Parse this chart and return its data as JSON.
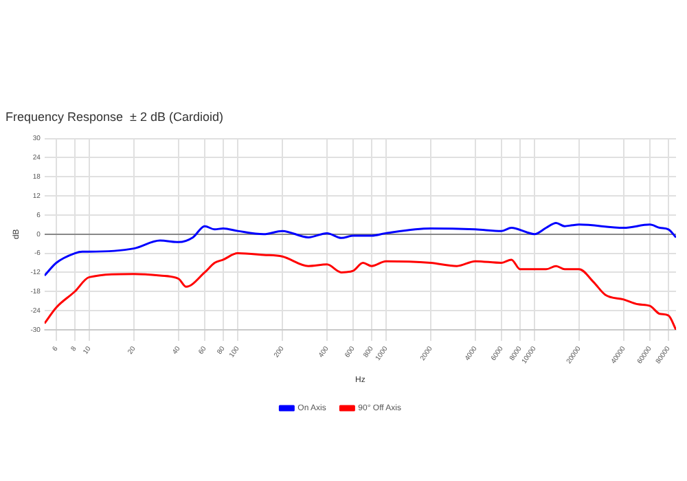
{
  "chart_data": {
    "type": "line",
    "title": "Frequency Response  ± 2 dB (Cardioid)",
    "xlabel": "Hz",
    "ylabel": "dB",
    "log": "x",
    "xlim": [
      5,
      90000
    ],
    "xticks": [
      6,
      8,
      10,
      20,
      40,
      60,
      80,
      100,
      200,
      400,
      600,
      800,
      1000,
      2000,
      4000,
      6000,
      8000,
      10000,
      20000,
      40000,
      60000,
      80000
    ],
    "ylim": [
      -30,
      30
    ],
    "yticks": [
      -30,
      -24,
      -18,
      -12,
      -6,
      0,
      6,
      12,
      18,
      24,
      30
    ],
    "grid": true,
    "legend": "bottom",
    "marker": "none",
    "line_style": "solid",
    "series": [
      {
        "name": "On Axis",
        "color": "#0000ff",
        "x": [
          5,
          6,
          8,
          9,
          10,
          20,
          30,
          40,
          50,
          60,
          70,
          80,
          100,
          150,
          200,
          300,
          400,
          500,
          600,
          800,
          1000,
          2000,
          4000,
          6000,
          7000,
          9000,
          10000,
          12000,
          14000,
          16000,
          18000,
          20000,
          40000,
          60000,
          70000,
          80000,
          90000
        ],
        "values": [
          -13,
          -9,
          -6,
          -5.5,
          -5.5,
          -4.5,
          -2,
          -2.5,
          -1,
          2.5,
          1.5,
          1.8,
          1,
          0,
          1,
          -1,
          0.3,
          -1.2,
          -0.5,
          -0.5,
          0.3,
          1.8,
          1.5,
          1,
          2,
          0.5,
          0,
          2,
          3.5,
          2.5,
          2.8,
          3,
          2,
          3,
          2,
          1.5,
          -1
        ]
      },
      {
        "name": "90° Off Axis",
        "color": "#ff0000",
        "x": [
          5,
          6,
          8,
          10,
          20,
          30,
          40,
          45,
          60,
          70,
          80,
          100,
          150,
          200,
          300,
          400,
          500,
          600,
          700,
          800,
          1000,
          2000,
          3000,
          4000,
          6000,
          7000,
          8000,
          10000,
          12000,
          14000,
          16000,
          18000,
          20000,
          25000,
          30000,
          40000,
          50000,
          60000,
          70000,
          80000,
          90000
        ],
        "values": [
          -28,
          -23,
          -18,
          -13.5,
          -12.5,
          -13,
          -14,
          -16.5,
          -12,
          -9,
          -8,
          -6,
          -6.5,
          -7,
          -10,
          -9.5,
          -12,
          -11.5,
          -9,
          -10,
          -8.5,
          -9,
          -10,
          -8.5,
          -9,
          -8,
          -11,
          -11,
          -11,
          -10,
          -11,
          -11,
          -11,
          -15,
          -19,
          -20.5,
          -22,
          -22.5,
          -25,
          -25.5,
          -30
        ]
      }
    ]
  }
}
